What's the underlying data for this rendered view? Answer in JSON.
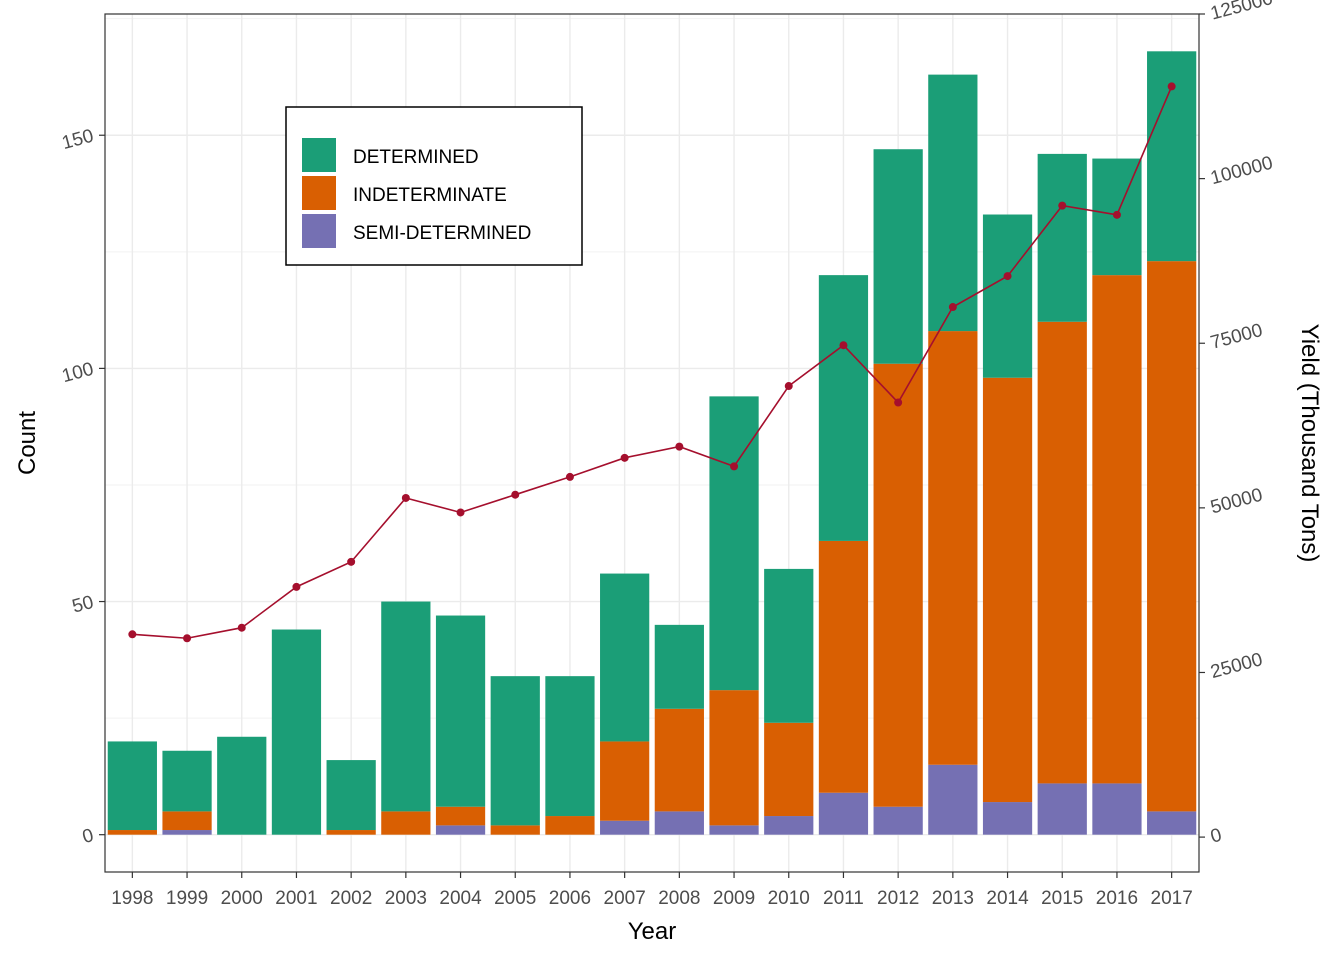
{
  "chart_data": {
    "type": "bar",
    "stacked": true,
    "categories": [
      "1998",
      "1999",
      "2000",
      "2001",
      "2002",
      "2003",
      "2004",
      "2005",
      "2006",
      "2007",
      "2008",
      "2009",
      "2010",
      "2011",
      "2012",
      "2013",
      "2014",
      "2015",
      "2016",
      "2017"
    ],
    "series": [
      {
        "name": "DETERMINED",
        "color": "#1b9e77",
        "values": [
          19,
          13,
          21,
          44,
          15,
          45,
          41,
          32,
          30,
          36,
          18,
          63,
          33,
          57,
          46,
          55,
          35,
          36,
          25,
          45
        ]
      },
      {
        "name": "INDETERMINATE",
        "color": "#d95f02",
        "values": [
          1,
          4,
          0,
          0,
          1,
          5,
          4,
          2,
          4,
          17,
          22,
          29,
          20,
          54,
          95,
          93,
          91,
          99,
          109,
          118
        ]
      },
      {
        "name": "SEMI-DETERMINED",
        "color": "#7570b3",
        "values": [
          0,
          1,
          0,
          0,
          0,
          0,
          2,
          0,
          0,
          3,
          5,
          2,
          4,
          9,
          6,
          15,
          7,
          11,
          11,
          5
        ]
      }
    ],
    "line": {
      "name": "Yield",
      "axis": "right",
      "color": "#a50f2d",
      "values": [
        30800,
        30200,
        31800,
        38000,
        41800,
        51500,
        49300,
        52000,
        54700,
        57600,
        59300,
        56300,
        68500,
        74700,
        66000,
        80500,
        85200,
        95900,
        94500,
        114000
      ]
    },
    "xlabel": "Year",
    "ylabel": "Count",
    "y2label": "Yield (Thousand Tons)",
    "ylim": [
      -8,
      176
    ],
    "y2lim": [
      -5300,
      125000
    ],
    "yticks": [
      0,
      50,
      100,
      150
    ],
    "y2ticks": [
      0,
      25000,
      50000,
      75000,
      100000,
      125000
    ],
    "grid": true,
    "legend_position": "top-left"
  }
}
